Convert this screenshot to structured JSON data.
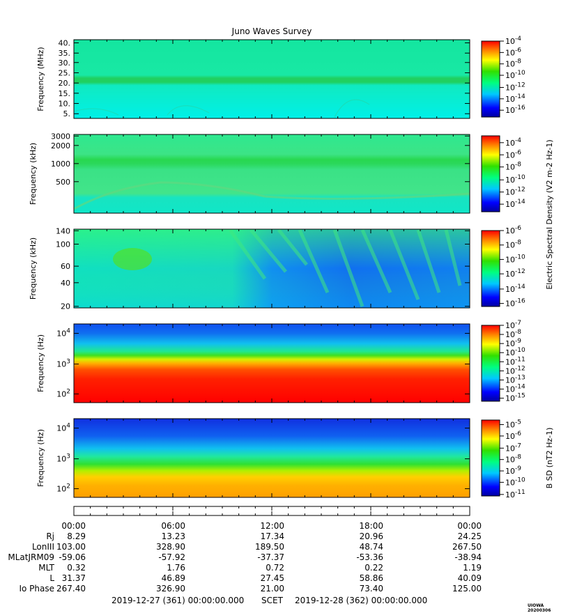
{
  "title": "Juno Waves Survey",
  "version_tag": "UIOWA 20200306",
  "colorbar_label": "Electric Spectral Density (V² m⁻² Hz⁻¹)",
  "panels": [
    {
      "ylabel": "Frequency (MHz)",
      "yticks": [
        "40.",
        "35.",
        "30.",
        "25.",
        "20.",
        "15.",
        "10.",
        "5."
      ],
      "cbar_ticks": [
        "10-4",
        "10-6",
        "10-8",
        "10-10",
        "10-12",
        "10-14",
        "10-16"
      ],
      "cbar_label": ""
    },
    {
      "ylabel": "Frequency (kHz)",
      "yticks": [
        "3000",
        "2000",
        "1000",
        "500"
      ],
      "cbar_ticks": [
        "10-4",
        "10-6",
        "10-8",
        "10-10",
        "10-12",
        "10-14"
      ],
      "cbar_label": "Electric Spectral Density (V2 m-2 Hz-1)"
    },
    {
      "ylabel": "Frequency (kHz)",
      "yticks": [
        "140",
        "100",
        "60",
        "40",
        "20"
      ],
      "cbar_ticks": [
        "10-6",
        "10-8",
        "10-10",
        "10-12",
        "10-14",
        "10-16"
      ],
      "cbar_label": ""
    },
    {
      "ylabel": "Frequency (Hz)",
      "yticks": [
        "10^4",
        "10^3",
        "10^2"
      ],
      "cbar_ticks": [
        "10-7",
        "10-8",
        "10-9",
        "10-10",
        "10-11",
        "10-12",
        "10-13",
        "10-14",
        "10-15"
      ],
      "cbar_label": ""
    },
    {
      "ylabel": "Frequency (Hz)",
      "yticks": [
        "10^4",
        "10^3",
        "10^2"
      ],
      "cbar_ticks": [
        "10-5",
        "10-6",
        "10-7",
        "10-8",
        "10-9",
        "10-10",
        "10-11"
      ],
      "cbar_label": "B SD (nT2 Hz-1)"
    }
  ],
  "chart_data": {
    "type": "heatmap",
    "title": "Juno Waves Survey",
    "x_tick_labels": [
      "00:00",
      "06:00",
      "12:00",
      "18:00",
      "00:00"
    ],
    "ephemeris": {
      "rows": [
        {
          "name": "Rj",
          "values": [
            "8.29",
            "13.23",
            "17.34",
            "20.96",
            "24.25"
          ]
        },
        {
          "name": "LonIII",
          "values": [
            "103.00",
            "328.90",
            "189.50",
            "48.74",
            "267.50"
          ]
        },
        {
          "name": "MLatJRM09",
          "values": [
            "-59.06",
            "-57.92",
            "-37.37",
            "-53.36",
            "-38.94"
          ]
        },
        {
          "name": "MLT",
          "values": [
            "0.32",
            "1.76",
            "0.72",
            "0.22",
            "1.19"
          ]
        },
        {
          "name": "L",
          "values": [
            "31.37",
            "46.89",
            "27.45",
            "58.86",
            "40.09"
          ]
        },
        {
          "name": "Io Phase",
          "values": [
            "267.40",
            "326.90",
            "21.00",
            "73.40",
            "125.00"
          ]
        }
      ]
    },
    "footer": {
      "start": "2019-12-27 (361) 00:00:00.000",
      "scet": "SCET",
      "end": "2019-12-28 (362) 00:00:00.000"
    }
  }
}
